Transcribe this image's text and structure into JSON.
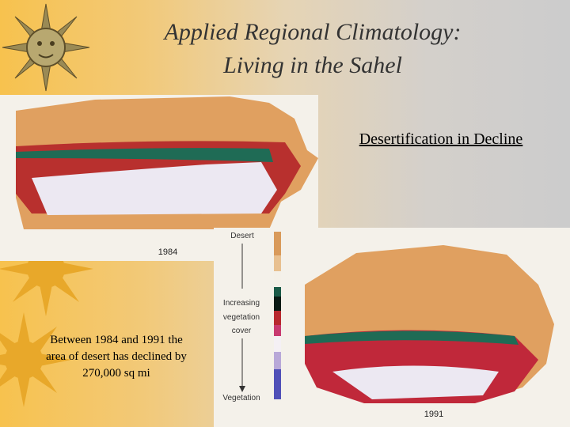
{
  "header": {
    "title": [
      "Applied Regional Climatology:",
      "Living in the Sahel"
    ],
    "subtitle": "Desertification in Decline"
  },
  "maps": [
    {
      "year": "1984"
    },
    {
      "year": "1991"
    }
  ],
  "legend": {
    "top": "Desert",
    "middle": [
      "Increasing",
      "vegetation",
      "cover"
    ],
    "bottom": "Vegetation"
  },
  "body": [
    "Between 1984 and 1991 the",
    "area of desert has declined by",
    "270,000 sq mi"
  ]
}
